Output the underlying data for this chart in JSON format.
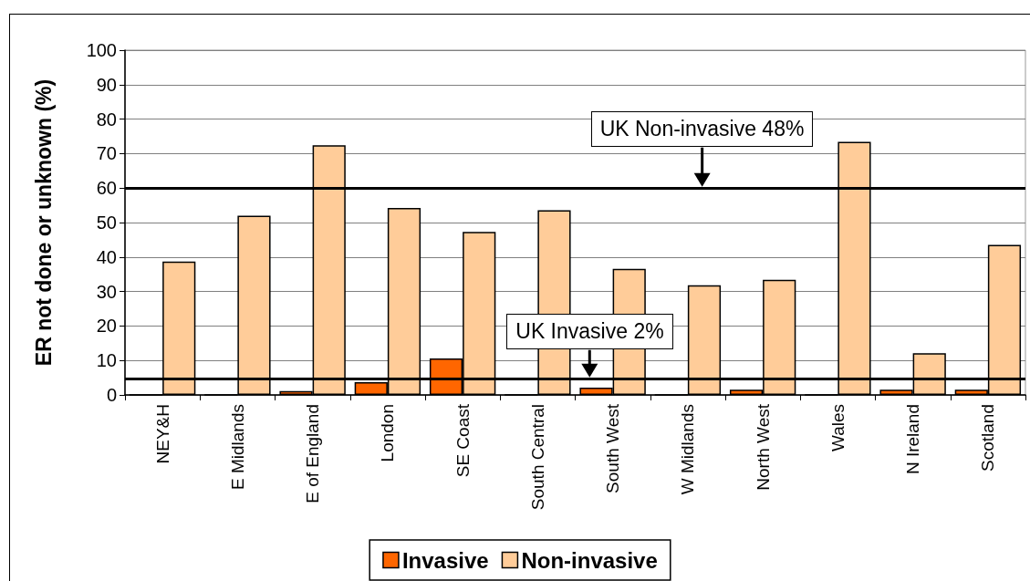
{
  "chart_data": {
    "type": "bar",
    "ylabel": "ER not done or unknown (%)",
    "categories": [
      "NEY&H",
      "E Midlands",
      "E of England",
      "London",
      "SE Coast",
      "South Central",
      "South West",
      "W Midlands",
      "North West",
      "Wales",
      "N Ireland",
      "Scotland"
    ],
    "series": [
      {
        "name": "Invasive",
        "color": "#ff6600",
        "values": [
          0,
          0,
          1.1,
          3.7,
          10.6,
          0,
          2.1,
          0,
          1.5,
          0,
          1.5,
          1.5
        ]
      },
      {
        "name": "Non-invasive",
        "color": "#ffcc99",
        "values": [
          38.7,
          52.0,
          72.4,
          54.2,
          47.3,
          53.6,
          36.6,
          31.8,
          33.4,
          73.4,
          12.1,
          43.5
        ]
      }
    ],
    "ylim": [
      0,
      100
    ],
    "yticks": [
      0,
      10,
      20,
      30,
      40,
      50,
      60,
      70,
      80,
      90,
      100
    ],
    "grid": "y",
    "legend": "bottom",
    "ref_lines": [
      {
        "axis": "y",
        "value": 60,
        "label": "UK Non-invasive 48%"
      },
      {
        "axis": "y",
        "value": 4.7,
        "label": "UK Invasive 2%"
      }
    ]
  }
}
